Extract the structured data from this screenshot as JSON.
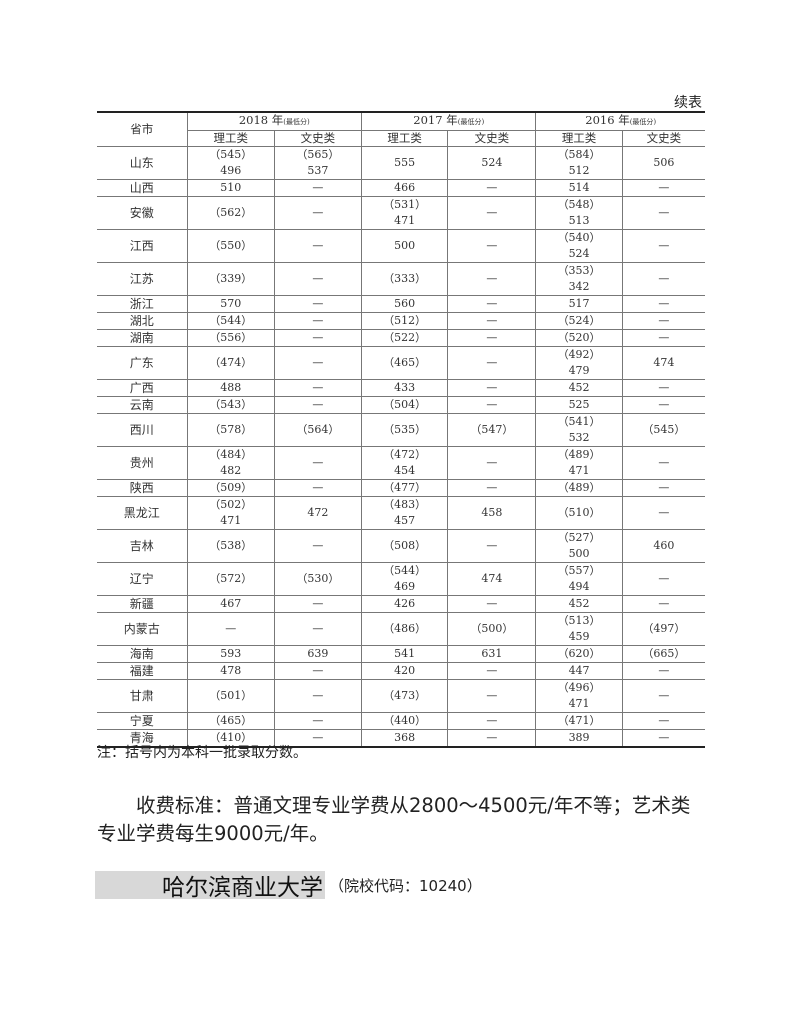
{
  "continued_label": "续表",
  "table": {
    "province_header": "省市",
    "years": [
      {
        "year": "2018 年",
        "note": "(最低分)"
      },
      {
        "year": "2017 年",
        "note": "(最低分)"
      },
      {
        "year": "2016 年",
        "note": "(最低分)"
      }
    ],
    "sub_headers": [
      "理工类",
      "文史类",
      "理工类",
      "文史类",
      "理工类",
      "文史类"
    ],
    "rows": [
      {
        "province": "山东",
        "cells": [
          "（545）\n496",
          "（565）\n537",
          "555",
          "524",
          "（584）\n512",
          "506"
        ]
      },
      {
        "province": "山西",
        "cells": [
          "510",
          "—",
          "466",
          "—",
          "514",
          "—"
        ]
      },
      {
        "province": "安徽",
        "cells": [
          "（562）",
          "—",
          "（531）\n471",
          "—",
          "（548）\n513",
          "—"
        ]
      },
      {
        "province": "江西",
        "cells": [
          "（550）",
          "—",
          "500",
          "—",
          "（540）\n524",
          "—"
        ]
      },
      {
        "province": "江苏",
        "cells": [
          "（339）",
          "—",
          "（333）",
          "—",
          "（353）\n342",
          "—"
        ]
      },
      {
        "province": "浙江",
        "cells": [
          "570",
          "—",
          "560",
          "—",
          "517",
          "—"
        ]
      },
      {
        "province": "湖北",
        "cells": [
          "（544）",
          "—",
          "（512）",
          "—",
          "（524）",
          "—"
        ]
      },
      {
        "province": "湖南",
        "cells": [
          "（556）",
          "—",
          "（522）",
          "—",
          "（520）",
          "—"
        ]
      },
      {
        "province": "广东",
        "cells": [
          "（474）",
          "—",
          "（465）",
          "—",
          "（492）\n479",
          "474"
        ]
      },
      {
        "province": "广西",
        "cells": [
          "488",
          "—",
          "433",
          "—",
          "452",
          "—"
        ]
      },
      {
        "province": "云南",
        "cells": [
          "（543）",
          "—",
          "（504）",
          "—",
          "525",
          "—"
        ]
      },
      {
        "province": "西川",
        "cells": [
          "（578）",
          "（564）",
          "（535）",
          "（547）",
          "（541）\n532",
          "（545）"
        ]
      },
      {
        "province": "贵州",
        "cells": [
          "（484）\n482",
          "—",
          "（472）\n454",
          "—",
          "（489）\n471",
          "—"
        ]
      },
      {
        "province": "陕西",
        "cells": [
          "（509）",
          "—",
          "（477）",
          "—",
          "（489）",
          "—"
        ]
      },
      {
        "province": "黑龙江",
        "cells": [
          "（502）\n471",
          "472",
          "（483）\n457",
          "458",
          "（510）",
          "—"
        ]
      },
      {
        "province": "吉林",
        "cells": [
          "（538）",
          "—",
          "（508）",
          "—",
          "（527）\n500",
          "460"
        ]
      },
      {
        "province": "辽宁",
        "cells": [
          "（572）",
          "（530）",
          "（544）\n469",
          "474",
          "（557）\n494",
          "—"
        ]
      },
      {
        "province": "新疆",
        "cells": [
          "467",
          "—",
          "426",
          "—",
          "452",
          "—"
        ]
      },
      {
        "province": "内蒙古",
        "cells": [
          "—",
          "—",
          "（486）",
          "（500）",
          "（513）\n459",
          "（497）"
        ]
      },
      {
        "province": "海南",
        "cells": [
          "593",
          "639",
          "541",
          "631",
          "（620）",
          "（665）"
        ]
      },
      {
        "province": "福建",
        "cells": [
          "478",
          "—",
          "420",
          "—",
          "447",
          "—"
        ]
      },
      {
        "province": "甘肃",
        "cells": [
          "（501）",
          "—",
          "（473）",
          "—",
          "（496）\n471",
          "—"
        ]
      },
      {
        "province": "宁夏",
        "cells": [
          "（465）",
          "—",
          "（440）",
          "—",
          "（471）",
          "—"
        ]
      },
      {
        "province": "青海",
        "cells": [
          "（410）",
          "—",
          "368",
          "—",
          "389",
          "—"
        ]
      }
    ]
  },
  "note": "注：括号内为本科一批录取分数。",
  "fee_paragraph": "收费标准：普通文理专业学费从2800～4500元/年不等；艺术类专业学费每生9000元/年。",
  "university": {
    "name": "哈尔滨商业大学",
    "code_label": "（院校代码：10240）"
  }
}
